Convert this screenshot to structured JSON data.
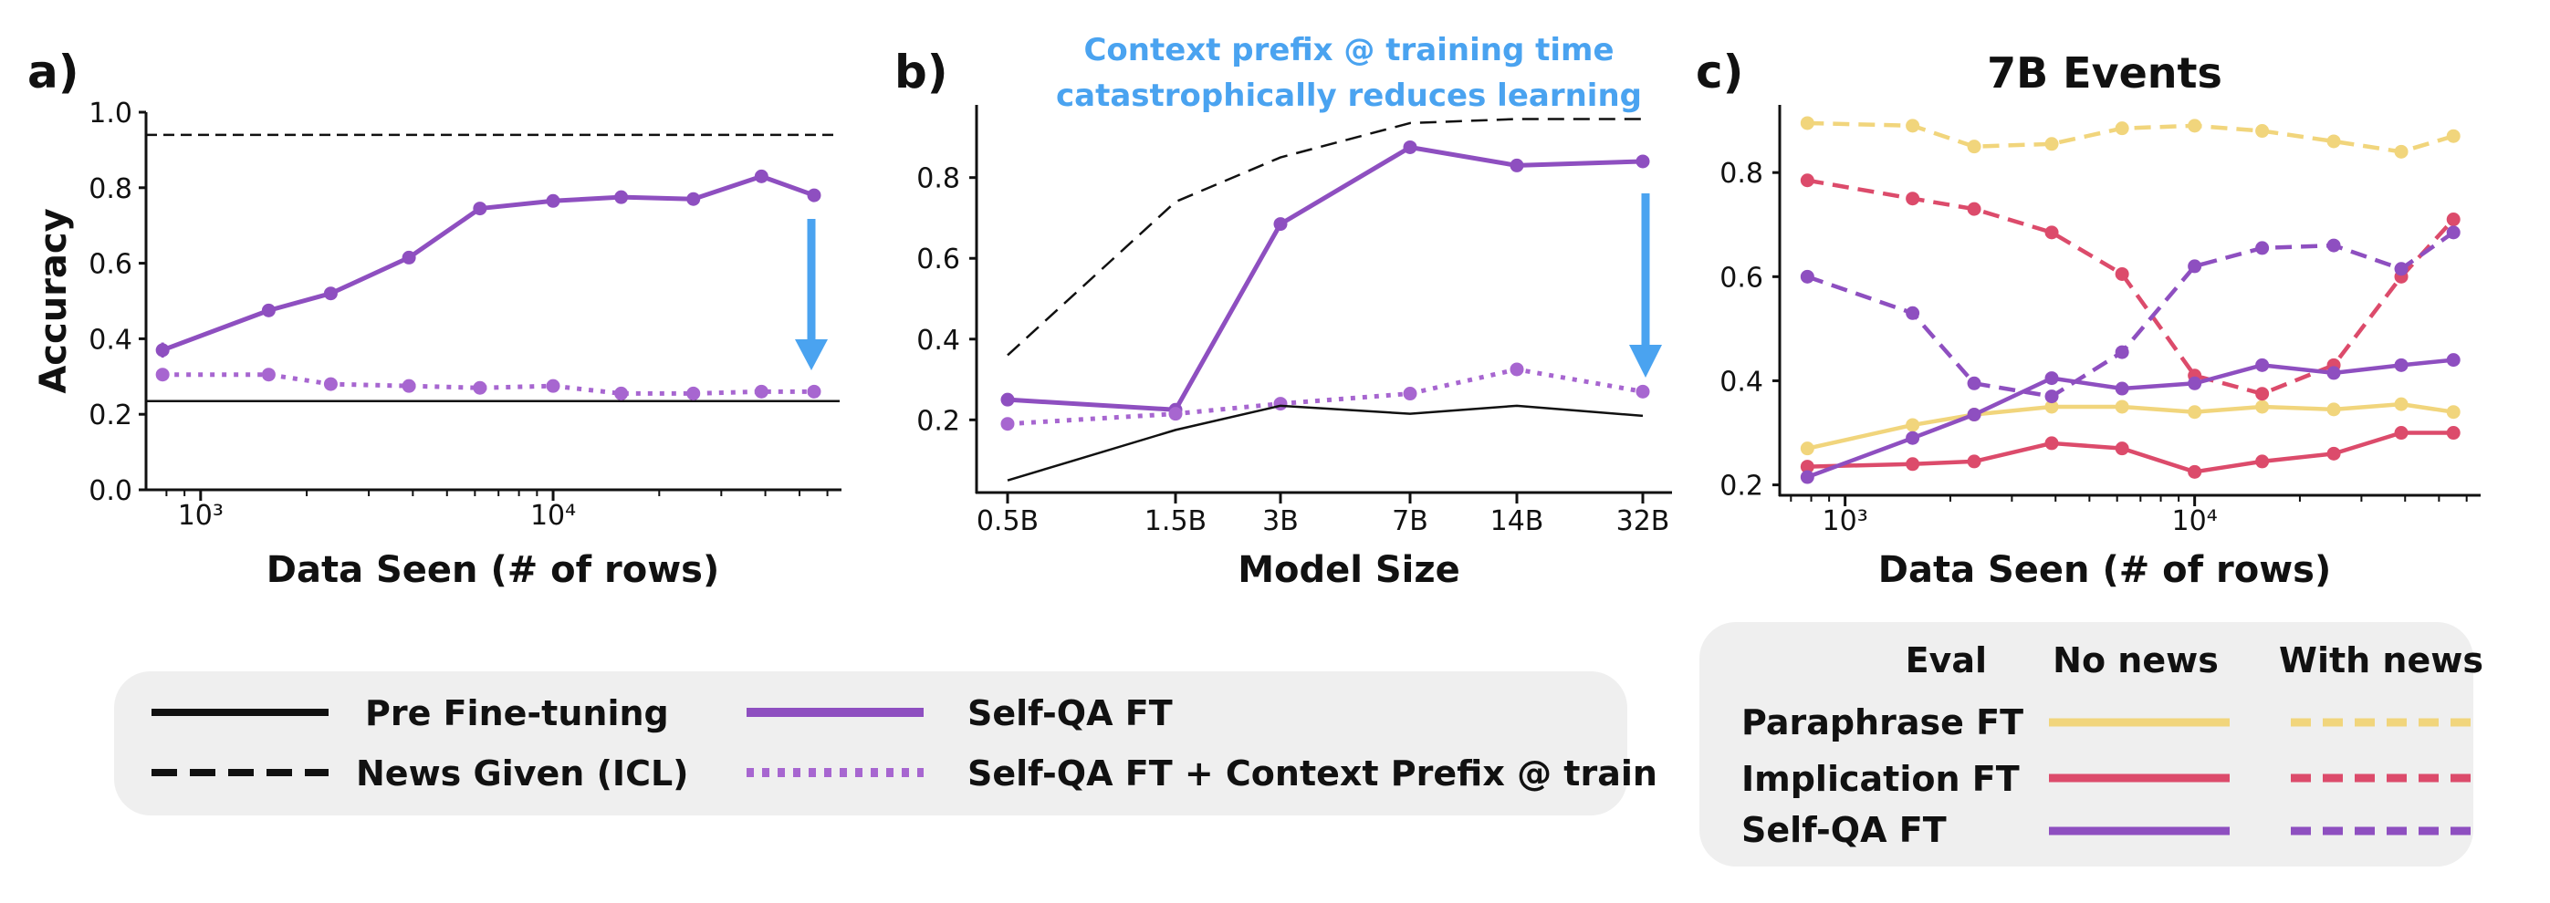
{
  "colors": {
    "purple": "#8e4fc0",
    "purple_light": "#a766d0",
    "yellow": "#f1d57c",
    "red": "#dc4b6b",
    "blue": "#4aa3f0",
    "black": "#111111",
    "legend_bg": "#efefef"
  },
  "panels": {
    "a": {
      "letter": "a)",
      "xlabel": "Data Seen (# of rows)",
      "ylabel": "Accuracy",
      "xticks": [
        "10³",
        "10⁴"
      ],
      "yticks": [
        "0.0",
        "0.2",
        "0.4",
        "0.6",
        "0.8",
        "1.0"
      ]
    },
    "b": {
      "letter": "b)",
      "xlabel": "Model Size",
      "annotation_line1": "Context prefix @ training time",
      "annotation_line2": "catastrophically reduces learning",
      "xticks": [
        "0.5B",
        "1.5B",
        "3B",
        "7B",
        "14B",
        "32B"
      ],
      "yticks": [
        "0.2",
        "0.4",
        "0.6",
        "0.8"
      ]
    },
    "c": {
      "letter": "c)",
      "title": "7B Events",
      "xlabel": "Data Seen (# of rows)",
      "xticks": [
        "10³",
        "10⁴"
      ],
      "yticks": [
        "0.2",
        "0.4",
        "0.6",
        "0.8"
      ]
    }
  },
  "legend_main": {
    "pre": "Pre Fine-tuning",
    "icl": "News Given (ICL)",
    "selfqa": "Self-QA FT",
    "selfqa_prefix": "Self-QA FT + Context Prefix @ train"
  },
  "legend_c": {
    "eval": "Eval",
    "no_news": "No news",
    "with_news": "With news",
    "rows": [
      "Paraphrase FT",
      "Implication FT",
      "Self-QA FT"
    ]
  },
  "chart_data": [
    {
      "panel": "a",
      "type": "line",
      "xscale": "log",
      "xlim": [
        700,
        65000
      ],
      "ylim": [
        0,
        1.0
      ],
      "xlabel": "Data Seen (# of rows)",
      "ylabel": "Accuracy",
      "x": [
        780,
        1560,
        2340,
        3900,
        6200,
        10000,
        15600,
        25000,
        39000,
        55000
      ],
      "series": [
        {
          "name": "Self-QA FT",
          "color": "#8e4fc0",
          "style": "solid",
          "values": [
            0.37,
            0.475,
            0.52,
            0.615,
            0.745,
            0.765,
            0.775,
            0.77,
            0.83,
            0.78
          ],
          "err": [
            0.02,
            0.015,
            0.01,
            0.01,
            0.008,
            0.008,
            0.008,
            0.008,
            0.008,
            0.008
          ]
        },
        {
          "name": "Self-QA FT + Context Prefix @ train",
          "color": "#a766d0",
          "style": "dotted",
          "values": [
            0.305,
            0.305,
            0.28,
            0.275,
            0.27,
            0.275,
            0.255,
            0.255,
            0.26,
            0.26
          ],
          "err": [
            0.01,
            0.01,
            0.01,
            0.01,
            0.01,
            0.01,
            0.008,
            0.008,
            0.008,
            0.008
          ]
        }
      ],
      "hlines": [
        {
          "name": "News Given (ICL)",
          "y": 0.94,
          "style": "dashed"
        },
        {
          "name": "Pre Fine-tuning",
          "y": 0.235,
          "style": "solid"
        }
      ]
    },
    {
      "panel": "b",
      "type": "line",
      "categories": [
        "0.5B",
        "1.5B",
        "3B",
        "7B",
        "14B",
        "32B"
      ],
      "ylim": [
        0.02,
        0.98
      ],
      "xlabel": "Model Size",
      "series": [
        {
          "name": "Self-QA FT",
          "style": "solid",
          "values": [
            0.25,
            0.225,
            0.685,
            0.875,
            0.83,
            0.84
          ]
        },
        {
          "name": "Self-QA FT + Context Prefix @ train",
          "style": "dotted",
          "values": [
            0.19,
            0.215,
            0.24,
            0.265,
            0.325,
            0.27
          ]
        },
        {
          "name": "News Given (ICL)",
          "style": "dashed",
          "values": [
            0.36,
            0.74,
            0.85,
            0.935,
            0.945,
            0.945
          ]
        },
        {
          "name": "Pre Fine-tuning",
          "style": "solid",
          "values": [
            0.05,
            0.175,
            0.235,
            0.215,
            0.235,
            0.21
          ]
        }
      ]
    },
    {
      "panel": "c",
      "type": "line",
      "title": "7B Events",
      "xscale": "log",
      "xlim": [
        650,
        65000
      ],
      "ylim": [
        0.18,
        0.93
      ],
      "xlabel": "Data Seen (# of rows)",
      "x": [
        780,
        1560,
        2340,
        3900,
        6200,
        10000,
        15600,
        25000,
        39000,
        55000
      ],
      "series": [
        {
          "name": "Paraphrase FT",
          "eval": "No news",
          "style": "solid",
          "values": [
            0.27,
            0.315,
            0.335,
            0.35,
            0.35,
            0.34,
            0.35,
            0.345,
            0.355,
            0.34
          ]
        },
        {
          "name": "Paraphrase FT",
          "eval": "With news",
          "style": "dashed",
          "values": [
            0.895,
            0.89,
            0.85,
            0.855,
            0.885,
            0.89,
            0.88,
            0.86,
            0.84,
            0.87
          ]
        },
        {
          "name": "Implication FT",
          "eval": "No news",
          "style": "solid",
          "values": [
            0.235,
            0.24,
            0.245,
            0.28,
            0.27,
            0.225,
            0.245,
            0.26,
            0.3,
            0.3
          ]
        },
        {
          "name": "Implication FT",
          "eval": "With news",
          "style": "dashed",
          "values": [
            0.785,
            0.75,
            0.73,
            0.685,
            0.605,
            0.41,
            0.375,
            0.43,
            0.6,
            0.71
          ]
        },
        {
          "name": "Self-QA FT",
          "eval": "No news",
          "style": "solid",
          "values": [
            0.215,
            0.29,
            0.335,
            0.405,
            0.385,
            0.395,
            0.43,
            0.415,
            0.43,
            0.44
          ]
        },
        {
          "name": "Self-QA FT",
          "eval": "With news",
          "style": "dashed",
          "values": [
            0.6,
            0.53,
            0.395,
            0.37,
            0.455,
            0.62,
            0.655,
            0.66,
            0.615,
            0.685
          ]
        }
      ]
    }
  ]
}
